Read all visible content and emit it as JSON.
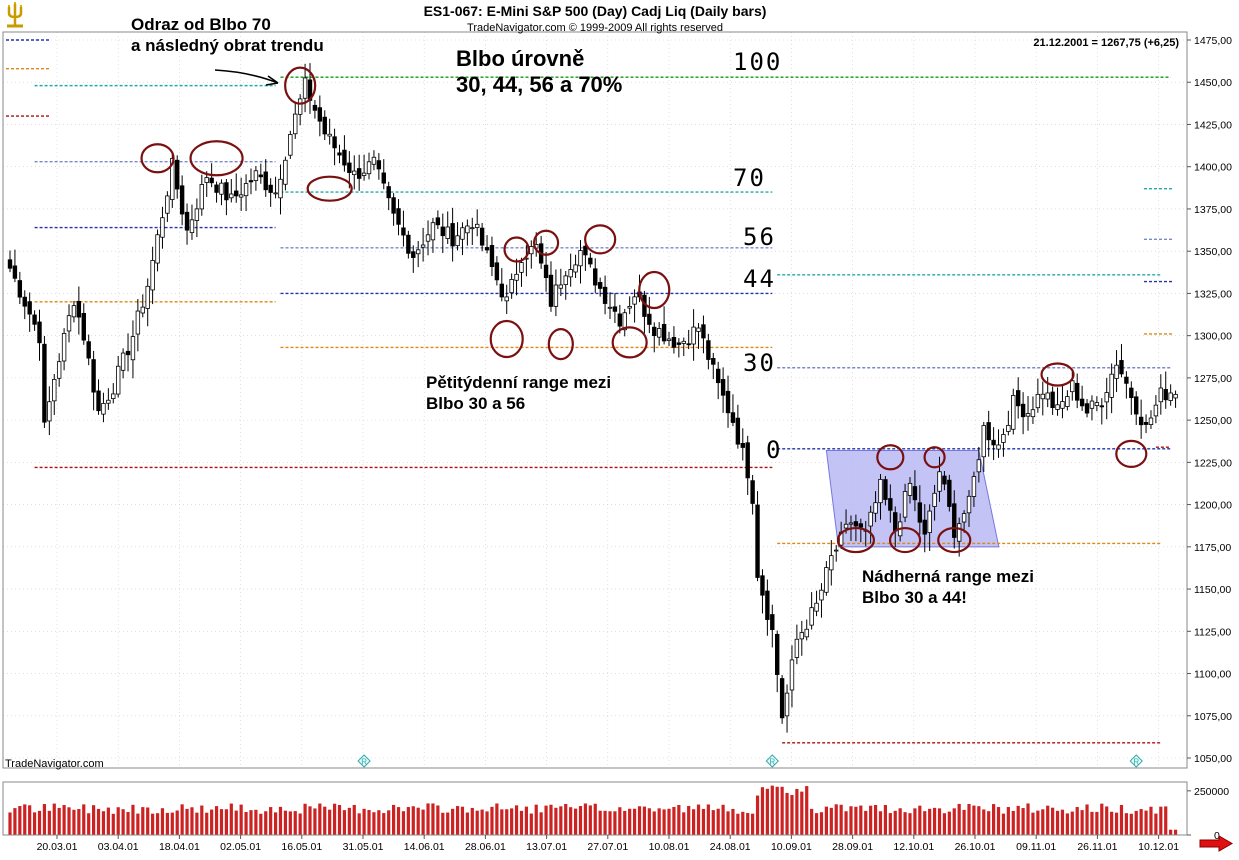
{
  "header": {
    "title": "ES1-067:  E-Mini S&P 500 (Day) Cadj Liq  (Daily bars)",
    "copyright": "TradeNavigator.com © 1999-2009 All rights reserved",
    "last_quote": "21.12.2001 = 1267,75 (+6,25)",
    "watermark": "TradeNavigator.com",
    "logo_icon": "trident-logo-icon",
    "scroll_icon": "red-right-arrow-icon"
  },
  "chart_data": {
    "type": "candlestick",
    "colors": {
      "up_body": "#ffffff",
      "down_body": "#000000",
      "green": "#119911",
      "cyan": "#22aaaa",
      "blue": "#2233aa",
      "orange": "#dd8811",
      "red": "#aa1111",
      "steelblue": "#7788cc",
      "circle": "#7a1010",
      "box_fill": "#b8b8f4",
      "volume": "#cc2222",
      "grid": "#cccccc"
    },
    "price_axis": {
      "min": 1050,
      "max": 1475,
      "ticks": [
        "1475,00",
        "1450,00",
        "1425,00",
        "1400,00",
        "1375,00",
        "1350,00",
        "1325,00",
        "1300,00",
        "1275,00",
        "1250,00",
        "1225,00",
        "1200,00",
        "1175,00",
        "1150,00",
        "1125,00",
        "1100,00",
        "1075,00",
        "1050,00"
      ]
    },
    "volume_axis": {
      "max": 300000,
      "ticks": [
        "250000",
        "0"
      ]
    },
    "x_ticks": [
      "20.03.01",
      "03.04.01",
      "18.04.01",
      "02.05.01",
      "16.05.01",
      "31.05.01",
      "14.06.01",
      "28.06.01",
      "13.07.01",
      "27.07.01",
      "10.08.01",
      "24.08.01",
      "10.09.01",
      "28.09.01",
      "12.10.01",
      "26.10.01",
      "09.11.01",
      "26.11.01",
      "10.12.01"
    ],
    "waypoints": [
      {
        "i": 0,
        "p": 1340
      },
      {
        "i": 6,
        "p": 1300
      },
      {
        "i": 7,
        "p": 1245
      },
      {
        "i": 9,
        "p": 1275
      },
      {
        "i": 13,
        "p": 1322
      },
      {
        "i": 15,
        "p": 1300
      },
      {
        "i": 18,
        "p": 1255
      },
      {
        "i": 21,
        "p": 1270
      },
      {
        "i": 25,
        "p": 1300
      },
      {
        "i": 28,
        "p": 1330
      },
      {
        "i": 33,
        "p": 1400
      },
      {
        "i": 36,
        "p": 1362
      },
      {
        "i": 40,
        "p": 1395
      },
      {
        "i": 45,
        "p": 1380
      },
      {
        "i": 50,
        "p": 1395
      },
      {
        "i": 54,
        "p": 1385
      },
      {
        "i": 57,
        "p": 1420
      },
      {
        "i": 60,
        "p": 1448
      },
      {
        "i": 64,
        "p": 1420
      },
      {
        "i": 70,
        "p": 1395
      },
      {
        "i": 74,
        "p": 1402
      },
      {
        "i": 78,
        "p": 1370
      },
      {
        "i": 82,
        "p": 1348
      },
      {
        "i": 86,
        "p": 1365
      },
      {
        "i": 90,
        "p": 1358
      },
      {
        "i": 94,
        "p": 1368
      },
      {
        "i": 98,
        "p": 1340
      },
      {
        "i": 101,
        "p": 1320
      },
      {
        "i": 104,
        "p": 1348
      },
      {
        "i": 107,
        "p": 1352
      },
      {
        "i": 110,
        "p": 1320
      },
      {
        "i": 113,
        "p": 1340
      },
      {
        "i": 116,
        "p": 1350
      },
      {
        "i": 120,
        "p": 1328
      },
      {
        "i": 124,
        "p": 1310
      },
      {
        "i": 127,
        "p": 1325
      },
      {
        "i": 131,
        "p": 1305
      },
      {
        "i": 136,
        "p": 1295
      },
      {
        "i": 140,
        "p": 1305
      },
      {
        "i": 144,
        "p": 1270
      },
      {
        "i": 147,
        "p": 1250
      },
      {
        "i": 150,
        "p": 1220
      },
      {
        "i": 151,
        "p": 1205
      },
      {
        "i": 152,
        "p": 1160
      },
      {
        "i": 155,
        "p": 1125
      },
      {
        "i": 157,
        "p": 1075
      },
      {
        "i": 158,
        "p": 1088
      },
      {
        "i": 160,
        "p": 1120
      },
      {
        "i": 164,
        "p": 1140
      },
      {
        "i": 167,
        "p": 1168
      },
      {
        "i": 171,
        "p": 1190
      },
      {
        "i": 174,
        "p": 1182
      },
      {
        "i": 177,
        "p": 1210
      },
      {
        "i": 180,
        "p": 1185
      },
      {
        "i": 183,
        "p": 1212
      },
      {
        "i": 186,
        "p": 1180
      },
      {
        "i": 189,
        "p": 1220
      },
      {
        "i": 192,
        "p": 1185
      },
      {
        "i": 195,
        "p": 1200
      },
      {
        "i": 198,
        "p": 1245
      },
      {
        "i": 201,
        "p": 1235
      },
      {
        "i": 204,
        "p": 1260
      },
      {
        "i": 207,
        "p": 1255
      },
      {
        "i": 210,
        "p": 1268
      },
      {
        "i": 213,
        "p": 1255
      },
      {
        "i": 216,
        "p": 1270
      },
      {
        "i": 219,
        "p": 1255
      },
      {
        "i": 222,
        "p": 1262
      },
      {
        "i": 225,
        "p": 1285
      },
      {
        "i": 228,
        "p": 1265
      },
      {
        "i": 231,
        "p": 1245
      },
      {
        "i": 234,
        "p": 1265
      },
      {
        "i": 237,
        "p": 1268
      }
    ],
    "levels": [
      {
        "name": "level-100-green",
        "price": 1453,
        "from": 55,
        "to": 236,
        "color": "green"
      },
      {
        "name": "level-70-cyan-1",
        "price": 1448,
        "from": 5,
        "to": 54,
        "color": "cyan"
      },
      {
        "name": "level-56-steel-1",
        "price": 1403,
        "from": 5,
        "to": 54,
        "color": "steelblue"
      },
      {
        "name": "level-30-blue-1",
        "price": 1364,
        "from": 5,
        "to": 54,
        "color": "blue"
      },
      {
        "name": "level-0-orange-1",
        "price": 1320,
        "from": 5,
        "to": 54,
        "color": "orange"
      },
      {
        "name": "level-0-red-1",
        "price": 1222,
        "from": 5,
        "to": 155,
        "color": "red"
      },
      {
        "name": "level-70-cyan-2",
        "price": 1385,
        "from": 55,
        "to": 155,
        "color": "cyan"
      },
      {
        "name": "level-56-steel-2",
        "price": 1352,
        "from": 55,
        "to": 155,
        "color": "steelblue"
      },
      {
        "name": "level-44-blue-2",
        "price": 1325,
        "from": 55,
        "to": 155,
        "color": "blue"
      },
      {
        "name": "level-30-orange-2",
        "price": 1293,
        "from": 55,
        "to": 155,
        "color": "orange"
      },
      {
        "name": "level-steel-3",
        "price": 1281,
        "from": 156,
        "to": 236,
        "color": "steelblue"
      },
      {
        "name": "level-cyan-3",
        "price": 1336,
        "from": 156,
        "to": 234,
        "color": "cyan"
      },
      {
        "name": "level-blue-3",
        "price": 1233,
        "from": 156,
        "to": 236,
        "color": "blue"
      },
      {
        "name": "level-orange-3",
        "price": 1177,
        "from": 156,
        "to": 234,
        "color": "orange"
      },
      {
        "name": "level-red-3",
        "price": 1059,
        "from": 157,
        "to": 234,
        "color": "red"
      },
      {
        "name": "level-red-4",
        "price": 1234,
        "from": 233,
        "to": 236,
        "color": "red"
      }
    ],
    "left_stubs": [
      {
        "price": 1475,
        "color": "blue"
      },
      {
        "price": 1458,
        "color": "orange"
      },
      {
        "price": 1430,
        "color": "red"
      }
    ],
    "right_stubs": [
      {
        "price": 1387,
        "color": "cyan"
      },
      {
        "price": 1357,
        "color": "steelblue"
      },
      {
        "price": 1332,
        "color": "blue"
      },
      {
        "price": 1301,
        "color": "orange"
      }
    ],
    "range_box": {
      "i1": 166,
      "i2": 197,
      "top": 1232,
      "bottom": 1175
    },
    "circles": [
      {
        "i": 30,
        "p": 1405,
        "rx": 16,
        "ry": 14
      },
      {
        "i": 42,
        "p": 1405,
        "rx": 26,
        "ry": 17
      },
      {
        "i": 59,
        "p": 1448,
        "rx": 15,
        "ry": 18
      },
      {
        "i": 65,
        "p": 1387,
        "rx": 22,
        "ry": 12
      },
      {
        "i": 101,
        "p": 1298,
        "rx": 16,
        "ry": 18
      },
      {
        "i": 103,
        "p": 1351,
        "rx": 12,
        "ry": 12
      },
      {
        "i": 109,
        "p": 1355,
        "rx": 12,
        "ry": 12
      },
      {
        "i": 112,
        "p": 1295,
        "rx": 12,
        "ry": 15
      },
      {
        "i": 120,
        "p": 1357,
        "rx": 15,
        "ry": 14
      },
      {
        "i": 126,
        "p": 1296,
        "rx": 17,
        "ry": 15
      },
      {
        "i": 131,
        "p": 1327,
        "rx": 15,
        "ry": 18
      },
      {
        "i": 172,
        "p": 1179,
        "rx": 18,
        "ry": 12
      },
      {
        "i": 179,
        "p": 1228,
        "rx": 13,
        "ry": 12
      },
      {
        "i": 182,
        "p": 1179,
        "rx": 15,
        "ry": 12
      },
      {
        "i": 188,
        "p": 1228,
        "rx": 10,
        "ry": 10
      },
      {
        "i": 192,
        "p": 1179,
        "rx": 16,
        "ry": 12
      },
      {
        "i": 213,
        "p": 1277,
        "rx": 16,
        "ry": 11
      },
      {
        "i": 228,
        "p": 1230,
        "rx": 15,
        "ry": 13
      }
    ],
    "annotations": [
      {
        "name": "annotation-odraz",
        "lines": [
          "Odraz od Blbo 70",
          "a následný obrat trendu"
        ],
        "x": 131,
        "y": 30,
        "size": 17,
        "bold": true
      },
      {
        "name": "annotation-levels",
        "lines": [
          "Blbo úrovně",
          "30, 44, 56 a 70%"
        ],
        "x": 456,
        "y": 66,
        "size": 22,
        "bold": true
      },
      {
        "name": "annotation-range-56",
        "lines": [
          "Pětitýdenní range mezi",
          "Blbo 30 a 56"
        ],
        "x": 426,
        "y": 388,
        "size": 17,
        "bold": true
      },
      {
        "name": "annotation-range-44",
        "lines": [
          "Nádherná range mezi",
          "Blbo 30 a 44!"
        ],
        "x": 862,
        "y": 582,
        "size": 17,
        "bold": true
      }
    ],
    "level_labels": [
      {
        "text": "100",
        "x": 733,
        "y": 70
      },
      {
        "text": "70",
        "x": 733,
        "y": 186
      },
      {
        "text": "56",
        "x": 743,
        "y": 245
      },
      {
        "text": "44",
        "x": 743,
        "y": 287
      },
      {
        "text": "30",
        "x": 743,
        "y": 371
      },
      {
        "text": "0",
        "x": 766,
        "y": 458
      }
    ],
    "event_markers": [
      {
        "i": 72,
        "label": "R"
      },
      {
        "i": 155,
        "label": "R"
      },
      {
        "i": 229,
        "label": "R"
      }
    ]
  }
}
